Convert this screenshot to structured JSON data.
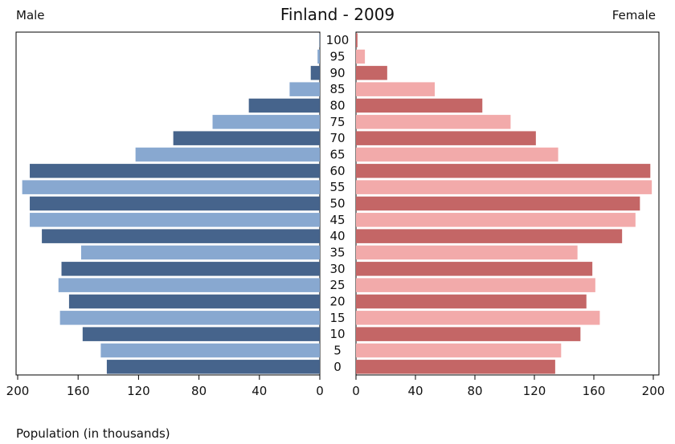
{
  "chart_data": {
    "type": "bar",
    "title": "Finland - 2009",
    "left_label": "Male",
    "right_label": "Female",
    "xlabel": "Population (in thousands)",
    "categories": [
      "0",
      "5",
      "10",
      "15",
      "20",
      "25",
      "30",
      "35",
      "40",
      "45",
      "50",
      "55",
      "60",
      "65",
      "70",
      "75",
      "80",
      "85",
      "90",
      "95",
      "100"
    ],
    "series": [
      {
        "name": "Male",
        "values": [
          141,
          145,
          157,
          172,
          166,
          173,
          171,
          158,
          184,
          192,
          192,
          197,
          192,
          122,
          97,
          71,
          47,
          20,
          6,
          1.5,
          0.3
        ],
        "colors": [
          "#46648c",
          "#88a8d0"
        ]
      },
      {
        "name": "Female",
        "values": [
          134,
          138,
          151,
          164,
          155,
          161,
          159,
          149,
          179,
          188,
          191,
          199,
          198,
          136,
          121,
          104,
          85,
          53,
          21,
          6,
          1
        ],
        "colors": [
          "#c46666",
          "#f2aaaa"
        ]
      }
    ],
    "xlim": [
      0,
      200
    ],
    "x_ticks": [
      "200",
      "160",
      "120",
      "80",
      "40",
      "0",
      "0",
      "40",
      "80",
      "120",
      "160",
      "200"
    ]
  }
}
